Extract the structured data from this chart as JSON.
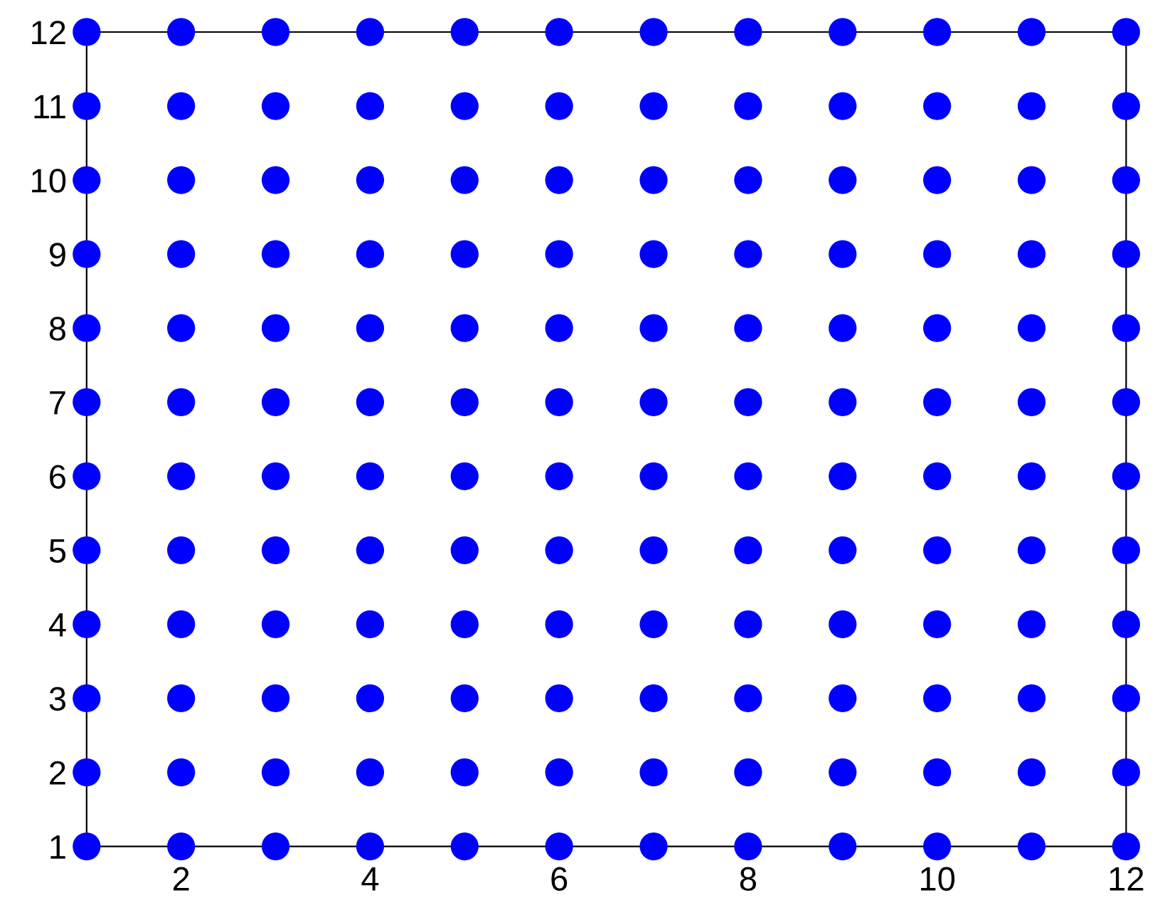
{
  "chart_data": {
    "type": "scatter",
    "x": [
      1,
      2,
      3,
      4,
      5,
      6,
      7,
      8,
      9,
      10,
      11,
      12,
      1,
      2,
      3,
      4,
      5,
      6,
      7,
      8,
      9,
      10,
      11,
      12,
      1,
      2,
      3,
      4,
      5,
      6,
      7,
      8,
      9,
      10,
      11,
      12,
      1,
      2,
      3,
      4,
      5,
      6,
      7,
      8,
      9,
      10,
      11,
      12,
      1,
      2,
      3,
      4,
      5,
      6,
      7,
      8,
      9,
      10,
      11,
      12,
      1,
      2,
      3,
      4,
      5,
      6,
      7,
      8,
      9,
      10,
      11,
      12,
      1,
      2,
      3,
      4,
      5,
      6,
      7,
      8,
      9,
      10,
      11,
      12,
      1,
      2,
      3,
      4,
      5,
      6,
      7,
      8,
      9,
      10,
      11,
      12,
      1,
      2,
      3,
      4,
      5,
      6,
      7,
      8,
      9,
      10,
      11,
      12,
      1,
      2,
      3,
      4,
      5,
      6,
      7,
      8,
      9,
      10,
      11,
      12,
      1,
      2,
      3,
      4,
      5,
      6,
      7,
      8,
      9,
      10,
      11,
      12,
      1,
      2,
      3,
      4,
      5,
      6,
      7,
      8,
      9,
      10,
      11,
      12
    ],
    "series": [
      {
        "color": "#0000ff",
        "values": [
          1,
          1,
          1,
          1,
          1,
          1,
          1,
          1,
          1,
          1,
          1,
          1,
          2,
          2,
          2,
          2,
          2,
          2,
          2,
          2,
          2,
          2,
          2,
          2,
          3,
          3,
          3,
          3,
          3,
          3,
          3,
          3,
          3,
          3,
          3,
          3,
          4,
          4,
          4,
          4,
          4,
          4,
          4,
          4,
          4,
          4,
          4,
          4,
          5,
          5,
          5,
          5,
          5,
          5,
          5,
          5,
          5,
          5,
          5,
          5,
          6,
          6,
          6,
          6,
          6,
          6,
          6,
          6,
          6,
          6,
          6,
          6,
          7,
          7,
          7,
          7,
          7,
          7,
          7,
          7,
          7,
          7,
          7,
          7,
          8,
          8,
          8,
          8,
          8,
          8,
          8,
          8,
          8,
          8,
          8,
          8,
          9,
          9,
          9,
          9,
          9,
          9,
          9,
          9,
          9,
          9,
          9,
          9,
          10,
          10,
          10,
          10,
          10,
          10,
          10,
          10,
          10,
          10,
          10,
          10,
          11,
          11,
          11,
          11,
          11,
          11,
          11,
          11,
          11,
          11,
          11,
          11,
          12,
          12,
          12,
          12,
          12,
          12,
          12,
          12,
          12,
          12,
          12,
          12
        ]
      }
    ],
    "xlim": [
      1,
      12
    ],
    "ylim": [
      1,
      12
    ],
    "xticks": [
      2,
      4,
      6,
      8,
      10,
      12
    ],
    "yticks": [
      1,
      2,
      3,
      4,
      5,
      6,
      7,
      8,
      9,
      10,
      11,
      12
    ],
    "marker": "circle",
    "grid": false,
    "legend": false
  }
}
